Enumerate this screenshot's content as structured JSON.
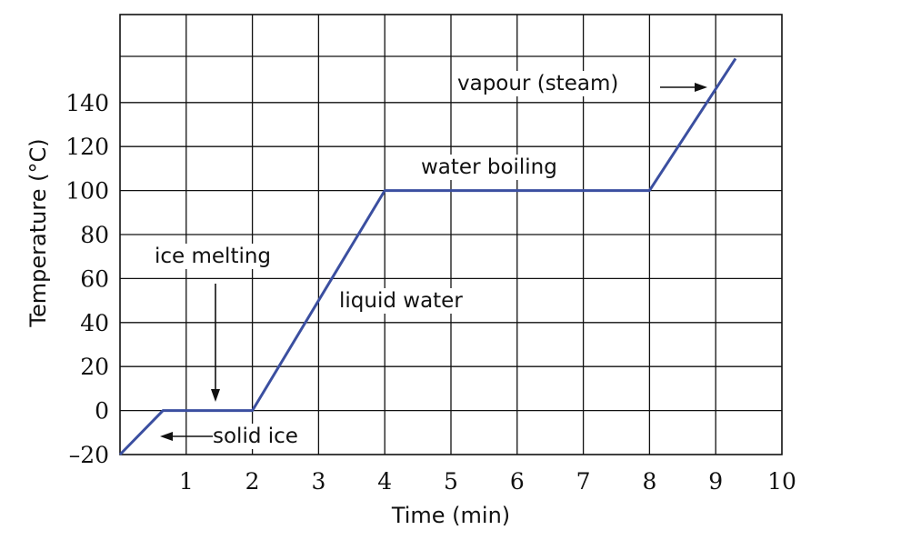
{
  "chart_data": {
    "type": "line",
    "xlabel": "Time (min)",
    "ylabel": "Temperature (°C)",
    "xlim": [
      0,
      10
    ],
    "ylim": [
      -20,
      160
    ],
    "x_ticks": [
      "1",
      "2",
      "3",
      "4",
      "5",
      "6",
      "7",
      "8",
      "9",
      "10"
    ],
    "y_ticks": [
      "–20",
      "0",
      "20",
      "40",
      "60",
      "80",
      "100",
      "120",
      "140"
    ],
    "grid": true,
    "series": [
      {
        "x": [
          0,
          0.65,
          2,
          4,
          8,
          9.3
        ],
        "y": [
          -20,
          0,
          0,
          100,
          100,
          160
        ]
      }
    ],
    "annotations": {
      "vapour": "vapour (steam)",
      "boiling": "water boiling",
      "melting": "ice melting",
      "liquid": "liquid water",
      "solid": "solid ice"
    },
    "colors": {
      "line": "#3b4fa0"
    }
  }
}
